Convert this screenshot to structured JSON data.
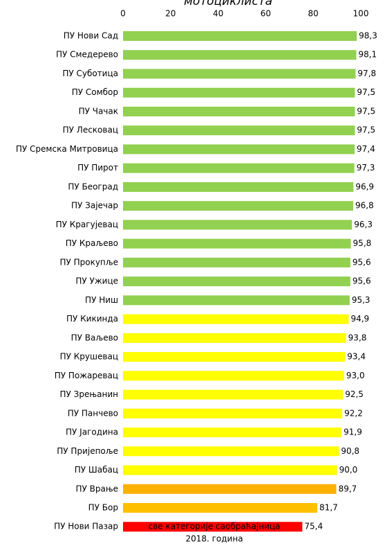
{
  "chart_data": {
    "type": "hbar",
    "title": "мотоциклиста",
    "categories": [
      "ПУ Нови Сад",
      "ПУ Смедерево",
      "ПУ Суботица",
      "ПУ Сомбор",
      "ПУ Чачак",
      "ПУ Лесковац",
      "ПУ Сремска Митровица",
      "ПУ Пирот",
      "ПУ Београд",
      "ПУ Зајечар",
      "ПУ Крагујевац",
      "ПУ Краљево",
      "ПУ Прокупље",
      "ПУ Ужице",
      "ПУ Ниш",
      "ПУ Кикинда",
      "ПУ Ваљево",
      "ПУ Крушевац",
      "ПУ Пожаревац",
      "ПУ Зрењанин",
      "ПУ Панчево",
      "ПУ Јагодина",
      "ПУ Пријепоље",
      "ПУ Шабац",
      "ПУ Врање",
      "ПУ Бор",
      "ПУ Нови Пазар"
    ],
    "values": [
      98.3,
      98.1,
      97.8,
      97.5,
      97.5,
      97.5,
      97.4,
      97.3,
      96.9,
      96.8,
      96.3,
      95.8,
      95.6,
      95.6,
      95.3,
      94.9,
      93.8,
      93.4,
      93.0,
      92.5,
      92.2,
      91.9,
      90.8,
      90.0,
      89.7,
      81.7,
      75.4
    ],
    "value_labels": [
      "98,3",
      "98,1",
      "97,8",
      "97,5",
      "97,5",
      "97,5",
      "97,4",
      "97,3",
      "96,9",
      "96,8",
      "96,3",
      "95,8",
      "95,6",
      "95,6",
      "95,3",
      "94,9",
      "93,8",
      "93,4",
      "93,0",
      "92,5",
      "92,2",
      "91,9",
      "90,8",
      "90,0",
      "89,7",
      "81,7",
      "75,4"
    ],
    "colors": [
      "#92d050",
      "#92d050",
      "#92d050",
      "#92d050",
      "#92d050",
      "#92d050",
      "#92d050",
      "#92d050",
      "#92d050",
      "#92d050",
      "#92d050",
      "#92d050",
      "#92d050",
      "#92d050",
      "#92d050",
      "#ffff00",
      "#ffff00",
      "#ffff00",
      "#ffff00",
      "#ffff00",
      "#ffff00",
      "#ffff00",
      "#ffff00",
      "#ffff00",
      "#ffb000",
      "#ffc000",
      "#ff0000"
    ],
    "xlim": [
      0,
      100
    ],
    "xticks": [
      0,
      20,
      40,
      60,
      80,
      100
    ],
    "footer": [
      "све категорије саобраћајница",
      "2018. година"
    ]
  }
}
